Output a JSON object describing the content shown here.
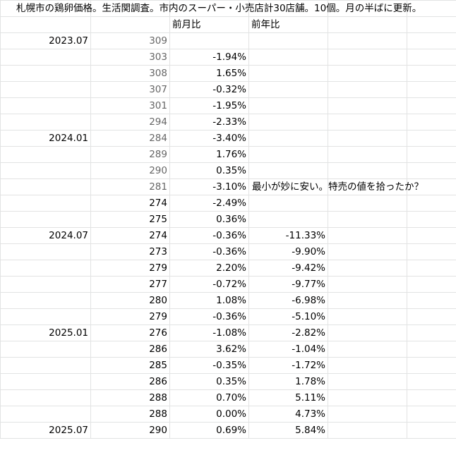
{
  "title": "札幌市の鶏卵価格。生活関調査。市内のスーパー・小売店計30店舗。10個。月の半ばに更新。",
  "headers": {
    "mom": "前月比",
    "yoy": "前年比"
  },
  "rows": [
    {
      "date": "2023.07",
      "price": "309",
      "mom": "",
      "yoy": "",
      "note": "",
      "gray": true
    },
    {
      "date": "",
      "price": "303",
      "mom": "-1.94%",
      "yoy": "",
      "note": "",
      "gray": true
    },
    {
      "date": "",
      "price": "308",
      "mom": "1.65%",
      "yoy": "",
      "note": "",
      "gray": true
    },
    {
      "date": "",
      "price": "307",
      "mom": "-0.32%",
      "yoy": "",
      "note": "",
      "gray": true
    },
    {
      "date": "",
      "price": "301",
      "mom": "-1.95%",
      "yoy": "",
      "note": "",
      "gray": true
    },
    {
      "date": "",
      "price": "294",
      "mom": "-2.33%",
      "yoy": "",
      "note": "",
      "gray": true
    },
    {
      "date": "2024.01",
      "price": "284",
      "mom": "-3.40%",
      "yoy": "",
      "note": "",
      "gray": true
    },
    {
      "date": "",
      "price": "289",
      "mom": "1.76%",
      "yoy": "",
      "note": "",
      "gray": true
    },
    {
      "date": "",
      "price": "290",
      "mom": "0.35%",
      "yoy": "",
      "note": "",
      "gray": true
    },
    {
      "date": "",
      "price": "281",
      "mom": "-3.10%",
      "yoy": "",
      "note": "最小が妙に安い。特売の値を拾ったか？",
      "gray": true
    },
    {
      "date": "",
      "price": "274",
      "mom": "-2.49%",
      "yoy": "",
      "note": "",
      "gray": false
    },
    {
      "date": "",
      "price": "275",
      "mom": "0.36%",
      "yoy": "",
      "note": "",
      "gray": false
    },
    {
      "date": "2024.07",
      "price": "274",
      "mom": "-0.36%",
      "yoy": "-11.33%",
      "note": "",
      "gray": false
    },
    {
      "date": "",
      "price": "273",
      "mom": "-0.36%",
      "yoy": "-9.90%",
      "note": "",
      "gray": false
    },
    {
      "date": "",
      "price": "279",
      "mom": "2.20%",
      "yoy": "-9.42%",
      "note": "",
      "gray": false
    },
    {
      "date": "",
      "price": "277",
      "mom": "-0.72%",
      "yoy": "-9.77%",
      "note": "",
      "gray": false
    },
    {
      "date": "",
      "price": "280",
      "mom": "1.08%",
      "yoy": "-6.98%",
      "note": "",
      "gray": false
    },
    {
      "date": "",
      "price": "279",
      "mom": "-0.36%",
      "yoy": "-5.10%",
      "note": "",
      "gray": false
    },
    {
      "date": "2025.01",
      "price": "276",
      "mom": "-1.08%",
      "yoy": "-2.82%",
      "note": "",
      "gray": false
    },
    {
      "date": "",
      "price": "286",
      "mom": "3.62%",
      "yoy": "-1.04%",
      "note": "",
      "gray": false
    },
    {
      "date": "",
      "price": "285",
      "mom": "-0.35%",
      "yoy": "-1.72%",
      "note": "",
      "gray": false
    },
    {
      "date": "",
      "price": "286",
      "mom": "0.35%",
      "yoy": "1.78%",
      "note": "",
      "gray": false
    },
    {
      "date": "",
      "price": "288",
      "mom": "0.70%",
      "yoy": "5.11%",
      "note": "",
      "gray": false
    },
    {
      "date": "",
      "price": "288",
      "mom": "0.00%",
      "yoy": "4.73%",
      "note": "",
      "gray": false
    },
    {
      "date": "2025.07",
      "price": "290",
      "mom": "0.69%",
      "yoy": "5.84%",
      "note": "",
      "gray": false
    }
  ]
}
